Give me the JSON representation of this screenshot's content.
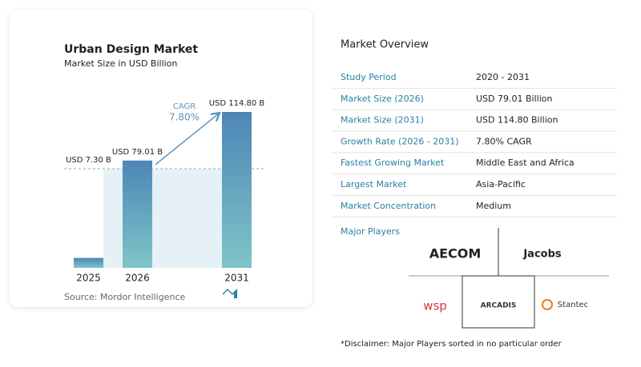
{
  "chart_data": {
    "type": "bar",
    "title": "Urban Design Market",
    "subtitle": "Market Size in USD Billion",
    "categories": [
      "2025",
      "2026",
      "2031"
    ],
    "values": [
      7.3,
      79.01,
      114.8
    ],
    "value_labels": [
      "USD 7.30 B",
      "USD 79.01 B",
      "USD 114.80 B"
    ],
    "color": "#5b93bd",
    "annotations": {
      "label": "CAGR",
      "value": "7.80%"
    },
    "source": "Source:  Mordor Intelligence"
  },
  "overview": {
    "title": "Market Overview",
    "rows": [
      [
        "Study Period",
        "2020 - 2031"
      ],
      [
        "Market Size (2026)",
        "USD 79.01 Billion"
      ],
      [
        "Market Size (2031)",
        "USD 114.80 Billion"
      ],
      [
        "Growth Rate (2026 - 2031)",
        "7.80% CAGR"
      ],
      [
        "Fastest Growing Market",
        "Middle East and Africa"
      ],
      [
        "Largest Market",
        "Asia-Pacific"
      ],
      [
        "Market Concentration",
        "Medium"
      ]
    ]
  },
  "major_players": {
    "title": "Major Players",
    "players": [
      "AECOM",
      "Jacobs",
      "wsp",
      "ARCADIS",
      "Stantec"
    ]
  },
  "disclaimer": "*Disclaimer: Major Players sorted in no particular order"
}
